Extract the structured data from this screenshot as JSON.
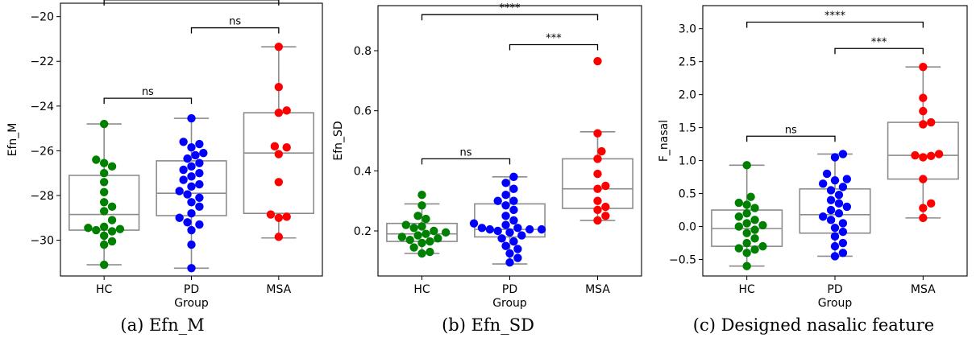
{
  "chart_data": [
    {
      "type": "box-swarm",
      "caption": "(a) Efn_M",
      "xlabel": "Group",
      "ylabel": "Efn_M",
      "categories": [
        "HC",
        "PD",
        "MSA"
      ],
      "colors": [
        "#008000",
        "#0000ff",
        "#ff0000"
      ],
      "ylim": [
        -31.6,
        -19.4
      ],
      "yticks": [
        -30,
        -28,
        -26,
        -24,
        -22,
        -20
      ],
      "ytick_labels": [
        "−30",
        "−28",
        "−26",
        "−24",
        "−22",
        "−20"
      ],
      "boxes": [
        {
          "whislo": -31.1,
          "q1": -29.55,
          "med": -28.85,
          "q3": -27.1,
          "whishi": -24.8
        },
        {
          "whislo": -31.25,
          "q1": -28.9,
          "med": -27.9,
          "q3": -26.45,
          "whishi": -24.55
        },
        {
          "whislo": -29.9,
          "q1": -28.8,
          "med": -26.1,
          "q3": -24.3,
          "whishi": -21.35
        }
      ],
      "points": [
        [
          -31.1,
          -30.2,
          -30.05,
          -29.8,
          -29.6,
          -29.55,
          -29.5,
          -29.45,
          -29.4,
          -29.1,
          -28.7,
          -28.5,
          -28.3,
          -27.85,
          -27.4,
          -27.0,
          -26.7,
          -26.55,
          -26.4,
          -24.8
        ],
        [
          -31.25,
          -30.2,
          -29.55,
          -29.3,
          -29.2,
          -29.0,
          -28.8,
          -28.5,
          -28.3,
          -28.1,
          -27.95,
          -27.8,
          -27.6,
          -27.5,
          -27.3,
          -27.15,
          -27.0,
          -26.85,
          -26.7,
          -26.55,
          -26.35,
          -26.2,
          -26.1,
          -25.85,
          -25.7,
          -25.6,
          -24.55
        ],
        [
          -29.85,
          -29.0,
          -28.95,
          -28.85,
          -27.4,
          -26.15,
          -25.85,
          -25.8,
          -24.3,
          -24.2,
          -23.15,
          -21.35
        ]
      ],
      "significance": [
        {
          "from": 0,
          "to": 2,
          "label": "**",
          "y": -19.25
        },
        {
          "from": 1,
          "to": 2,
          "label": "ns",
          "y": -20.5
        },
        {
          "from": 0,
          "to": 1,
          "label": "ns",
          "y": -23.65
        }
      ]
    },
    {
      "type": "box-swarm",
      "caption": "(b) Efn_SD",
      "xlabel": "Group",
      "ylabel": "Efn_SD",
      "categories": [
        "HC",
        "PD",
        "MSA"
      ],
      "colors": [
        "#008000",
        "#0000ff",
        "#ff0000"
      ],
      "ylim": [
        0.05,
        0.95
      ],
      "yticks": [
        0.2,
        0.4,
        0.6,
        0.8
      ],
      "ytick_labels": [
        "0.2",
        "0.4",
        "0.6",
        "0.8"
      ],
      "boxes": [
        {
          "whislo": 0.125,
          "q1": 0.165,
          "med": 0.19,
          "q3": 0.225,
          "whishi": 0.29
        },
        {
          "whislo": 0.09,
          "q1": 0.18,
          "med": 0.205,
          "q3": 0.29,
          "whishi": 0.38
        },
        {
          "whislo": 0.235,
          "q1": 0.275,
          "med": 0.34,
          "q3": 0.44,
          "whishi": 0.53
        }
      ],
      "points": [
        [
          0.125,
          0.13,
          0.145,
          0.16,
          0.165,
          0.17,
          0.175,
          0.18,
          0.185,
          0.19,
          0.195,
          0.2,
          0.21,
          0.215,
          0.22,
          0.24,
          0.25,
          0.285,
          0.32
        ],
        [
          0.095,
          0.11,
          0.125,
          0.14,
          0.15,
          0.165,
          0.175,
          0.185,
          0.195,
          0.2,
          0.205,
          0.21,
          0.205,
          0.205,
          0.21,
          0.22,
          0.225,
          0.235,
          0.25,
          0.27,
          0.285,
          0.3,
          0.3,
          0.32,
          0.34,
          0.36,
          0.38
        ],
        [
          0.235,
          0.25,
          0.27,
          0.28,
          0.3,
          0.34,
          0.35,
          0.39,
          0.44,
          0.465,
          0.525,
          0.765
        ]
      ],
      "significance": [
        {
          "from": 0,
          "to": 2,
          "label": "****",
          "y": 0.92
        },
        {
          "from": 1,
          "to": 2,
          "label": "***",
          "y": 0.82
        },
        {
          "from": 0,
          "to": 1,
          "label": "ns",
          "y": 0.44
        }
      ]
    },
    {
      "type": "box-swarm",
      "caption": "(c) Designed nasalic feature",
      "xlabel": "Group",
      "ylabel": "F_nasal",
      "categories": [
        "HC",
        "PD",
        "MSA"
      ],
      "colors": [
        "#008000",
        "#0000ff",
        "#ff0000"
      ],
      "ylim": [
        -0.75,
        3.35
      ],
      "yticks": [
        -0.5,
        0.0,
        0.5,
        1.0,
        1.5,
        2.0,
        2.5,
        3.0
      ],
      "ytick_labels": [
        "−0.5",
        "0.0",
        "0.5",
        "1.0",
        "1.5",
        "2.0",
        "2.5",
        "3.0"
      ],
      "boxes": [
        {
          "whislo": -0.6,
          "q1": -0.3,
          "med": -0.03,
          "q3": 0.25,
          "whishi": 0.93
        },
        {
          "whislo": -0.45,
          "q1": -0.1,
          "med": 0.18,
          "q3": 0.57,
          "whishi": 1.1
        },
        {
          "whislo": 0.13,
          "q1": 0.72,
          "med": 1.08,
          "q3": 1.58,
          "whishi": 2.42
        }
      ],
      "points": [
        [
          -0.6,
          -0.4,
          -0.35,
          -0.33,
          -0.3,
          -0.25,
          -0.18,
          -0.1,
          -0.05,
          0.0,
          0.02,
          0.05,
          0.1,
          0.15,
          0.2,
          0.28,
          0.33,
          0.36,
          0.45,
          0.93
        ],
        [
          -0.45,
          -0.4,
          -0.3,
          -0.25,
          -0.15,
          -0.08,
          -0.02,
          0.05,
          0.1,
          0.15,
          0.2,
          0.25,
          0.3,
          0.35,
          0.4,
          0.48,
          0.55,
          0.6,
          0.65,
          0.7,
          0.72,
          0.8,
          1.05,
          1.1
        ],
        [
          0.13,
          0.28,
          0.35,
          0.72,
          1.05,
          1.07,
          1.08,
          1.1,
          1.55,
          1.58,
          1.75,
          1.95,
          2.42
        ]
      ],
      "significance": [
        {
          "from": 0,
          "to": 2,
          "label": "****",
          "y": 3.1
        },
        {
          "from": 1,
          "to": 2,
          "label": "***",
          "y": 2.7
        },
        {
          "from": 0,
          "to": 1,
          "label": "ns",
          "y": 1.37
        }
      ]
    }
  ]
}
